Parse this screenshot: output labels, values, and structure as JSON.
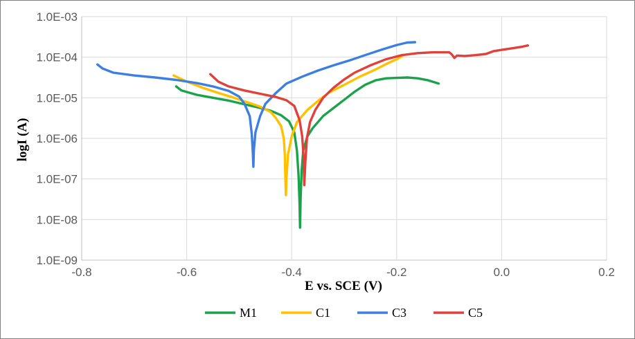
{
  "chart_data": {
    "type": "line",
    "title": "",
    "xlabel": "E vs. SCE (V)",
    "ylabel": "logI (A)",
    "xlim": [
      -0.8,
      0.2
    ],
    "ylim_log10": [
      -9,
      -3
    ],
    "x_ticks": [
      {
        "value": -0.8,
        "label": "-0.8"
      },
      {
        "value": -0.6,
        "label": "-0.6"
      },
      {
        "value": -0.4,
        "label": "-0.4"
      },
      {
        "value": -0.2,
        "label": "-0.2"
      },
      {
        "value": 0.0,
        "label": "0.0"
      },
      {
        "value": 0.2,
        "label": "0.2"
      }
    ],
    "y_ticks": [
      {
        "exp": -3,
        "label": "1.0E-03"
      },
      {
        "exp": -4,
        "label": "1.0E-04"
      },
      {
        "exp": -5,
        "label": "1.0E-05"
      },
      {
        "exp": -6,
        "label": "1.0E-06"
      },
      {
        "exp": -7,
        "label": "1.0E-07"
      },
      {
        "exp": -8,
        "label": "1.0E-08"
      },
      {
        "exp": -9,
        "label": "1.0E-09"
      }
    ],
    "grid": true,
    "legend_position": "bottom",
    "series": [
      {
        "name": "M1",
        "color": "#1aa34a",
        "points": [
          [
            -0.62,
            -4.72
          ],
          [
            -0.61,
            -4.82
          ],
          [
            -0.58,
            -4.93
          ],
          [
            -0.55,
            -5.0
          ],
          [
            -0.52,
            -5.07
          ],
          [
            -0.5,
            -5.13
          ],
          [
            -0.48,
            -5.19
          ],
          [
            -0.46,
            -5.25
          ],
          [
            -0.44,
            -5.32
          ],
          [
            -0.42,
            -5.43
          ],
          [
            -0.405,
            -5.58
          ],
          [
            -0.395,
            -5.85
          ],
          [
            -0.39,
            -6.3
          ],
          [
            -0.387,
            -6.9
          ],
          [
            -0.385,
            -7.6
          ],
          [
            -0.384,
            -8.2
          ],
          [
            -0.383,
            -7.5
          ],
          [
            -0.381,
            -6.8
          ],
          [
            -0.378,
            -6.3
          ],
          [
            -0.37,
            -5.95
          ],
          [
            -0.36,
            -5.75
          ],
          [
            -0.34,
            -5.45
          ],
          [
            -0.32,
            -5.25
          ],
          [
            -0.3,
            -5.05
          ],
          [
            -0.28,
            -4.85
          ],
          [
            -0.26,
            -4.68
          ],
          [
            -0.24,
            -4.57
          ],
          [
            -0.22,
            -4.52
          ],
          [
            -0.2,
            -4.51
          ],
          [
            -0.18,
            -4.5
          ],
          [
            -0.16,
            -4.52
          ],
          [
            -0.14,
            -4.57
          ],
          [
            -0.12,
            -4.65
          ]
        ]
      },
      {
        "name": "C1",
        "color": "#ffc000",
        "points": [
          [
            -0.625,
            -4.45
          ],
          [
            -0.6,
            -4.6
          ],
          [
            -0.57,
            -4.75
          ],
          [
            -0.54,
            -4.88
          ],
          [
            -0.51,
            -5.0
          ],
          [
            -0.48,
            -5.13
          ],
          [
            -0.46,
            -5.22
          ],
          [
            -0.44,
            -5.35
          ],
          [
            -0.43,
            -5.5
          ],
          [
            -0.42,
            -5.7
          ],
          [
            -0.415,
            -6.0
          ],
          [
            -0.413,
            -6.4
          ],
          [
            -0.412,
            -7.0
          ],
          [
            -0.411,
            -7.4
          ],
          [
            -0.41,
            -7.0
          ],
          [
            -0.407,
            -6.4
          ],
          [
            -0.4,
            -5.95
          ],
          [
            -0.39,
            -5.6
          ],
          [
            -0.37,
            -5.3
          ],
          [
            -0.35,
            -5.08
          ],
          [
            -0.33,
            -4.88
          ],
          [
            -0.3,
            -4.68
          ],
          [
            -0.27,
            -4.48
          ],
          [
            -0.24,
            -4.3
          ],
          [
            -0.22,
            -4.17
          ],
          [
            -0.2,
            -4.05
          ],
          [
            -0.19,
            -3.98
          ]
        ]
      },
      {
        "name": "C3",
        "color": "#3d7fe0",
        "points": [
          [
            -0.77,
            -4.18
          ],
          [
            -0.76,
            -4.28
          ],
          [
            -0.74,
            -4.38
          ],
          [
            -0.7,
            -4.45
          ],
          [
            -0.66,
            -4.5
          ],
          [
            -0.62,
            -4.56
          ],
          [
            -0.58,
            -4.64
          ],
          [
            -0.55,
            -4.72
          ],
          [
            -0.52,
            -4.83
          ],
          [
            -0.5,
            -4.97
          ],
          [
            -0.49,
            -5.15
          ],
          [
            -0.48,
            -5.45
          ],
          [
            -0.476,
            -5.9
          ],
          [
            -0.474,
            -6.35
          ],
          [
            -0.473,
            -6.7
          ],
          [
            -0.472,
            -6.3
          ],
          [
            -0.469,
            -5.85
          ],
          [
            -0.46,
            -5.45
          ],
          [
            -0.45,
            -5.15
          ],
          [
            -0.43,
            -4.88
          ],
          [
            -0.41,
            -4.65
          ],
          [
            -0.38,
            -4.48
          ],
          [
            -0.35,
            -4.33
          ],
          [
            -0.32,
            -4.2
          ],
          [
            -0.29,
            -4.08
          ],
          [
            -0.26,
            -3.95
          ],
          [
            -0.23,
            -3.82
          ],
          [
            -0.2,
            -3.7
          ],
          [
            -0.18,
            -3.64
          ],
          [
            -0.165,
            -3.63
          ]
        ]
      },
      {
        "name": "C5",
        "color": "#e0413a",
        "points": [
          [
            -0.555,
            -4.42
          ],
          [
            -0.54,
            -4.6
          ],
          [
            -0.52,
            -4.72
          ],
          [
            -0.49,
            -4.82
          ],
          [
            -0.46,
            -4.9
          ],
          [
            -0.43,
            -4.98
          ],
          [
            -0.41,
            -5.06
          ],
          [
            -0.395,
            -5.2
          ],
          [
            -0.385,
            -5.55
          ],
          [
            -0.38,
            -5.95
          ],
          [
            -0.377,
            -6.5
          ],
          [
            -0.376,
            -7.15
          ],
          [
            -0.374,
            -6.6
          ],
          [
            -0.371,
            -6.0
          ],
          [
            -0.365,
            -5.6
          ],
          [
            -0.355,
            -5.3
          ],
          [
            -0.34,
            -5.0
          ],
          [
            -0.32,
            -4.75
          ],
          [
            -0.3,
            -4.55
          ],
          [
            -0.28,
            -4.38
          ],
          [
            -0.25,
            -4.2
          ],
          [
            -0.22,
            -4.05
          ],
          [
            -0.19,
            -3.95
          ],
          [
            -0.16,
            -3.9
          ],
          [
            -0.13,
            -3.88
          ],
          [
            -0.1,
            -3.88
          ],
          [
            -0.095,
            -3.93
          ],
          [
            -0.09,
            -4.02
          ],
          [
            -0.085,
            -3.96
          ],
          [
            -0.07,
            -3.97
          ],
          [
            -0.05,
            -3.95
          ],
          [
            -0.03,
            -3.92
          ],
          [
            -0.015,
            -3.85
          ],
          [
            0.0,
            -3.82
          ],
          [
            0.02,
            -3.78
          ],
          [
            0.04,
            -3.74
          ],
          [
            0.05,
            -3.71
          ]
        ]
      }
    ]
  }
}
